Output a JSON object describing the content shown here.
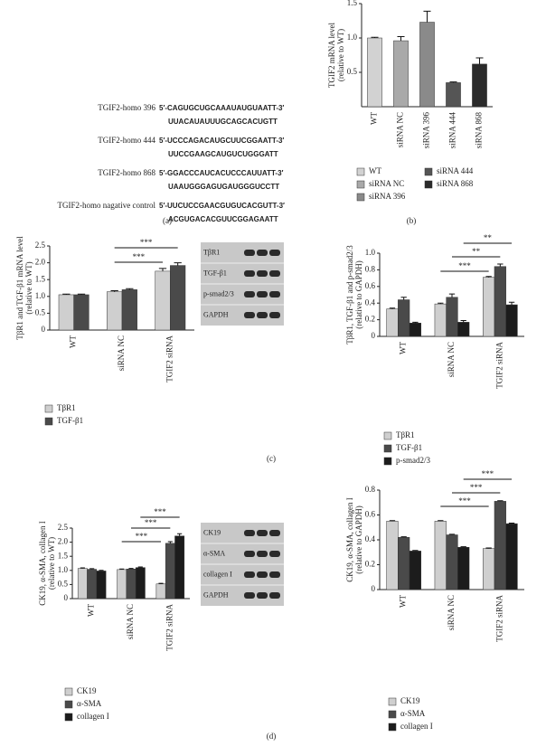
{
  "panel_labels": [
    "(a)",
    "(b)",
    "(c)",
    "(d)"
  ],
  "sequences": [
    {
      "name": "TGIF2-homo 396",
      "lines": [
        "5′-CAGUGCUGCAAAUAUGUAATT-3′",
        "UUACAUAUUUGCAGCACUGTT"
      ]
    },
    {
      "name": "TGIF2-homo 444",
      "lines": [
        "5′-UCCCAGACAUGCUUCGGAATT-3′",
        "UUCCGAAGCAUGUCUGGGATT"
      ]
    },
    {
      "name": "TGIF2-homo 868",
      "lines": [
        "5′-GGACCCAUCACUCCCAUUATT-3′",
        "UAAUGGGAGUGAUGGGUCCTT"
      ]
    },
    {
      "name": "TGIF2-homo nagative control",
      "lines": [
        "5′-UUCUCCGAACGUGUCACGUTT-3′",
        "ACGUGACACGUUCGGAGAATT"
      ]
    }
  ],
  "blots": [
    {
      "labels": [
        "TβR1",
        "TGF-β1",
        "p-smad2/3",
        "GAPDH"
      ]
    },
    {
      "labels": [
        "CK19",
        "α-SMA",
        "collagen I",
        "GAPDH"
      ]
    }
  ],
  "chart_data": [
    {
      "type": "bar",
      "ylabel": [
        "TGIF2 mRNA level",
        "(relative to WT)"
      ],
      "categories": [
        "WT",
        "siRNA NC",
        "siRNA 396",
        "siRNA 444",
        "siRNA 868"
      ],
      "values": [
        1.0,
        0.96,
        1.23,
        0.35,
        0.62
      ],
      "errors": [
        0.01,
        0.06,
        0.16,
        0.01,
        0.09
      ],
      "colors": [
        "#d2d2d2",
        "#a9a9a9",
        "#8a8a8a",
        "#555555",
        "#2b2b2b"
      ],
      "ylim": [
        0,
        1.5
      ],
      "yticks": [
        0.5,
        {
          "value": 1,
          "label": "1.0"
        },
        1.5
      ],
      "legend": true,
      "annotations": []
    },
    {
      "type": "bar",
      "ylabel": [
        "TβR1 and TGF-β1 mRNA level",
        "(relative to WT)"
      ],
      "categories": [
        "WT",
        "siRNA NC",
        "TGIF2 siRNA"
      ],
      "series": [
        {
          "name": "TβR1",
          "color": "#cfcfcf",
          "values": [
            1.05,
            1.14,
            1.75
          ],
          "errors": [
            0.02,
            0.03,
            0.08
          ]
        },
        {
          "name": "TGF-β1",
          "color": "#4a4a4a",
          "values": [
            1.05,
            1.2,
            1.92
          ],
          "errors": [
            0.02,
            0.03,
            0.08
          ]
        }
      ],
      "ylim": [
        0,
        2.5
      ],
      "yticks": [
        0,
        0.5,
        {
          "value": 1,
          "label": "1.0"
        },
        1.5,
        {
          "value": 2,
          "label": "2.0"
        },
        2.5
      ],
      "legend": true,
      "annotations": [
        "***",
        "***"
      ]
    },
    {
      "type": "bar",
      "ylabel": [
        "TβR1, TGF-β1 and p-smad2/3",
        "(relative to GAPDH)"
      ],
      "categories": [
        "WT",
        "siRNA NC",
        "TGIF2 siRNA"
      ],
      "series": [
        {
          "name": "TβR1",
          "color": "#cfcfcf",
          "values": [
            0.33,
            0.39,
            0.71
          ],
          "errors": [
            0.01,
            0.01,
            0.01
          ]
        },
        {
          "name": "TGF-β1",
          "color": "#4a4a4a",
          "values": [
            0.44,
            0.47,
            0.84
          ],
          "errors": [
            0.03,
            0.04,
            0.03
          ]
        },
        {
          "name": "p-smad2/3",
          "color": "#1c1c1c",
          "values": [
            0.16,
            0.17,
            0.38
          ],
          "errors": [
            0.01,
            0.02,
            0.03
          ]
        }
      ],
      "ylim": [
        0,
        1.0
      ],
      "yticks": [
        0,
        0.2,
        0.4,
        0.6,
        0.8,
        {
          "value": 1,
          "label": "1.0"
        }
      ],
      "legend": true,
      "annotations": [
        "**",
        "**",
        "***"
      ]
    },
    {
      "type": "bar",
      "ylabel": [
        "CK19, α-SMA, collagen I",
        "(relative to WT)"
      ],
      "categories": [
        "WT",
        "siRNA NC",
        "TGIF2 siRNA"
      ],
      "series": [
        {
          "name": "CK19",
          "color": "#cfcfcf",
          "values": [
            1.07,
            1.03,
            0.52
          ],
          "errors": [
            0.02,
            0.02,
            0.02
          ]
        },
        {
          "name": "α-SMA",
          "color": "#4a4a4a",
          "values": [
            1.04,
            1.05,
            1.96
          ],
          "errors": [
            0.02,
            0.02,
            0.06
          ]
        },
        {
          "name": "collagen I",
          "color": "#1c1c1c",
          "values": [
            0.98,
            1.1,
            2.22
          ],
          "errors": [
            0.02,
            0.02,
            0.08
          ]
        }
      ],
      "ylim": [
        0,
        2.5
      ],
      "yticks": [
        0,
        0.5,
        {
          "value": 1,
          "label": "1.0"
        },
        1.5,
        {
          "value": 2,
          "label": "2.0"
        },
        2.5
      ],
      "legend": true,
      "annotations": [
        "***",
        "***",
        "***"
      ]
    },
    {
      "type": "bar",
      "ylabel": [
        "CK19, α-SMA, collagen I",
        "(relative to GAPDH)"
      ],
      "categories": [
        "WT",
        "siRNA NC",
        "TGIF2 siRNA"
      ],
      "series": [
        {
          "name": "CK19",
          "color": "#cfcfcf",
          "values": [
            0.55,
            0.55,
            0.33
          ],
          "errors": [
            0.005,
            0.005,
            0.005
          ]
        },
        {
          "name": "α-SMA",
          "color": "#4a4a4a",
          "values": [
            0.42,
            0.44,
            0.71
          ],
          "errors": [
            0.005,
            0.005,
            0.005
          ]
        },
        {
          "name": "collagen I",
          "color": "#1c1c1c",
          "values": [
            0.31,
            0.34,
            0.53
          ],
          "errors": [
            0.005,
            0.005,
            0.005
          ]
        }
      ],
      "ylim": [
        0,
        0.8
      ],
      "yticks": [
        0,
        0.2,
        0.4,
        0.6,
        0.8
      ],
      "legend": true,
      "annotations": [
        "***",
        "***",
        "***"
      ]
    }
  ]
}
